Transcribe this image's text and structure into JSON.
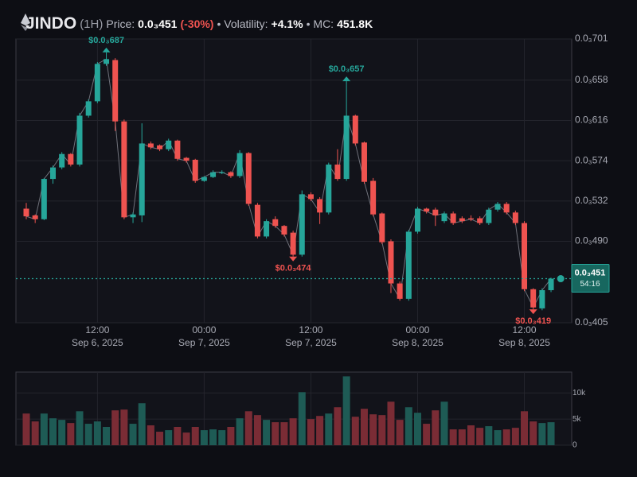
{
  "header": {
    "symbol": "JINDO",
    "interval": "(1H)",
    "price_label": "Price:",
    "price": "0.0₃451",
    "change": "(-30%)",
    "volatility_label": "• Volatility:",
    "volatility": "+4.1%",
    "mc_label": "• MC:",
    "mc": "451.8K"
  },
  "chart_data": {
    "type": "candlestick",
    "x": [
      "2025-09-06T04:00",
      "2025-09-06T05:00",
      "2025-09-06T06:00",
      "2025-09-06T07:00",
      "2025-09-06T08:00",
      "2025-09-06T09:00",
      "2025-09-06T10:00",
      "2025-09-06T11:00",
      "2025-09-06T12:00",
      "2025-09-06T13:00",
      "2025-09-06T14:00",
      "2025-09-06T15:00",
      "2025-09-06T16:00",
      "2025-09-06T17:00",
      "2025-09-06T18:00",
      "2025-09-06T19:00",
      "2025-09-06T20:00",
      "2025-09-06T21:00",
      "2025-09-06T22:00",
      "2025-09-06T23:00",
      "2025-09-07T00:00",
      "2025-09-07T01:00",
      "2025-09-07T02:00",
      "2025-09-07T03:00",
      "2025-09-07T04:00",
      "2025-09-07T05:00",
      "2025-09-07T06:00",
      "2025-09-07T07:00",
      "2025-09-07T08:00",
      "2025-09-07T09:00",
      "2025-09-07T10:00",
      "2025-09-07T11:00",
      "2025-09-07T12:00",
      "2025-09-07T13:00",
      "2025-09-07T14:00",
      "2025-09-07T15:00",
      "2025-09-07T16:00",
      "2025-09-07T17:00",
      "2025-09-07T18:00",
      "2025-09-07T19:00",
      "2025-09-07T20:00",
      "2025-09-07T21:00",
      "2025-09-07T22:00",
      "2025-09-07T23:00",
      "2025-09-08T00:00",
      "2025-09-08T01:00",
      "2025-09-08T02:00",
      "2025-09-08T03:00",
      "2025-09-08T04:00",
      "2025-09-08T05:00",
      "2025-09-08T06:00",
      "2025-09-08T07:00",
      "2025-09-08T08:00",
      "2025-09-08T09:00",
      "2025-09-08T10:00",
      "2025-09-08T11:00",
      "2025-09-08T12:00",
      "2025-09-08T13:00",
      "2025-09-08T14:00",
      "2025-09-08T15:00"
    ],
    "open": [
      0.000524,
      0.000517,
      0.000513,
      0.000555,
      0.000567,
      0.000581,
      0.00057,
      0.000621,
      0.000636,
      0.000675,
      0.000679,
      0.000615,
      0.000515,
      0.000517,
      0.000592,
      0.00059,
      0.000586,
      0.000595,
      0.000577,
      0.000575,
      0.000553,
      0.000557,
      0.000561,
      0.000562,
      0.000558,
      0.000582,
      0.000528,
      0.000495,
      0.000513,
      0.000506,
      0.000499,
      0.000476,
      0.000539,
      0.000534,
      0.00052,
      0.00057,
      0.000555,
      0.000621,
      0.000593,
      0.000553,
      0.000519,
      0.00049,
      0.000446,
      0.00043,
      0.0005,
      0.000524,
      0.000523,
      0.000511,
      0.000519,
      0.000514,
      0.000514,
      0.000514,
      0.000509,
      0.000523,
      0.000529,
      0.00052,
      0.000509,
      0.00044,
      0.00042,
      0.000439
    ],
    "high": [
      0.00053,
      0.000518,
      0.000556,
      0.000569,
      0.000583,
      0.000582,
      0.000624,
      0.000638,
      0.000677,
      0.000687,
      0.000681,
      0.000617,
      0.00052,
      0.000613,
      0.000594,
      0.000591,
      0.000597,
      0.000596,
      0.000578,
      0.000576,
      0.000558,
      0.000564,
      0.000564,
      0.000563,
      0.000585,
      0.000583,
      0.00053,
      0.000513,
      0.000516,
      0.000507,
      0.000501,
      0.000543,
      0.000541,
      0.000536,
      0.000572,
      0.000586,
      0.000657,
      0.000622,
      0.000594,
      0.000556,
      0.00052,
      0.000492,
      0.000448,
      0.000502,
      0.000526,
      0.000525,
      0.000525,
      0.000521,
      0.000521,
      0.000516,
      0.000517,
      0.000516,
      0.000525,
      0.000531,
      0.000531,
      0.000522,
      0.000511,
      0.000441,
      0.000441,
      0.000452
    ],
    "low": [
      0.000513,
      0.000509,
      0.000512,
      0.00055,
      0.000565,
      0.000568,
      0.000568,
      0.000619,
      0.000634,
      0.000673,
      0.000605,
      0.000513,
      0.000509,
      0.00051,
      0.000586,
      0.000584,
      0.000584,
      0.000574,
      0.000572,
      0.000551,
      0.000552,
      0.000556,
      0.00056,
      0.000556,
      0.000556,
      0.000527,
      0.000493,
      0.000493,
      0.000504,
      0.000495,
      0.000474,
      0.000474,
      0.000532,
      0.000508,
      0.000518,
      0.000553,
      0.000553,
      0.00059,
      0.00055,
      0.000516,
      0.000487,
      0.000436,
      0.000428,
      0.000428,
      0.000498,
      0.000519,
      0.000506,
      0.000509,
      0.000507,
      0.000509,
      0.000511,
      0.000507,
      0.000507,
      0.000521,
      0.000518,
      0.000507,
      0.000438,
      0.000419,
      0.000418,
      0.000437
    ],
    "close": [
      0.000516,
      0.000513,
      0.000555,
      0.000567,
      0.000581,
      0.00057,
      0.000621,
      0.000636,
      0.000675,
      0.00068,
      0.000615,
      0.000515,
      0.000518,
      0.000592,
      0.000588,
      0.000586,
      0.000595,
      0.000576,
      0.000574,
      0.000553,
      0.000557,
      0.000562,
      0.000562,
      0.000558,
      0.000582,
      0.000529,
      0.000495,
      0.000511,
      0.000506,
      0.000497,
      0.000476,
      0.000539,
      0.000534,
      0.00052,
      0.00057,
      0.000555,
      0.000621,
      0.000592,
      0.000552,
      0.000518,
      0.000489,
      0.000446,
      0.00043,
      0.0005,
      0.000524,
      0.000521,
      0.000517,
      0.000519,
      0.000509,
      0.000511,
      0.000513,
      0.000509,
      0.000523,
      0.000529,
      0.00052,
      0.000509,
      0.00044,
      0.000421,
      0.000439,
      0.000451
    ],
    "volume": [
      6060,
      4550,
      6060,
      5150,
      4850,
      4240,
      6500,
      4100,
      4550,
      3500,
      6670,
      6820,
      4100,
      8030,
      3800,
      2580,
      2880,
      3500,
      2420,
      3500,
      2880,
      3030,
      2880,
      3500,
      5150,
      6500,
      5760,
      4850,
      4400,
      4400,
      5150,
      10150,
      5000,
      5600,
      6060,
      7270,
      13180,
      5450,
      6970,
      5910,
      5760,
      8330,
      4850,
      7270,
      6210,
      4100,
      6670,
      8330,
      3030,
      3030,
      3800,
      3330,
      3640,
      2880,
      3030,
      3330,
      6500,
      4550,
      4240,
      4400
    ],
    "up_color": "#26a69a",
    "down_color": "#ef5350",
    "volume_up_color": "#1e5b55",
    "volume_down_color": "#7a2c35",
    "ylim": [
      0.000405,
      0.000701
    ],
    "yticks": [
      {
        "value": 0.000701,
        "label": "0.0₃701"
      },
      {
        "value": 0.000658,
        "label": "0.0₃658"
      },
      {
        "value": 0.000616,
        "label": "0.0₃616"
      },
      {
        "value": 0.000574,
        "label": "0.0₃574"
      },
      {
        "value": 0.000532,
        "label": "0.0₃532"
      },
      {
        "value": 0.00049,
        "label": "0.0₃490"
      },
      {
        "value": 0.000405,
        "label": "0.0₃405"
      }
    ],
    "xticks": [
      {
        "value": "2025-09-06T12:00",
        "label": "12:00",
        "date": "Sep 6, 2025"
      },
      {
        "value": "2025-09-07T00:00",
        "label": "00:00",
        "date": "Sep 7, 2025"
      },
      {
        "value": "2025-09-07T12:00",
        "label": "12:00",
        "date": "Sep 7, 2025"
      },
      {
        "value": "2025-09-08T00:00",
        "label": "00:00",
        "date": "Sep 8, 2025"
      },
      {
        "value": "2025-09-08T12:00",
        "label": "12:00",
        "date": "Sep 8, 2025"
      }
    ],
    "volume_ylim": [
      0,
      14000
    ],
    "volume_yticks": [
      {
        "value": 10000,
        "label": "10k"
      },
      {
        "value": 5000,
        "label": "5k"
      },
      0
    ],
    "grid": true,
    "last_price": {
      "value": 0.000451,
      "label": "0.0₃451"
    },
    "countdown": "54:16",
    "annotations": [
      {
        "x": "2025-09-06T13:00",
        "value": 0.000687,
        "label": "$0.0₃687",
        "kind": "high"
      },
      {
        "x": "2025-09-07T16:00",
        "value": 0.000657,
        "label": "$0.0₃657",
        "kind": "high"
      },
      {
        "x": "2025-09-07T10:00",
        "value": 0.000474,
        "label": "$0.0₃474",
        "kind": "low"
      },
      {
        "x": "2025-09-08T13:00",
        "value": 0.000419,
        "label": "$0.0₃419",
        "kind": "low"
      }
    ]
  }
}
